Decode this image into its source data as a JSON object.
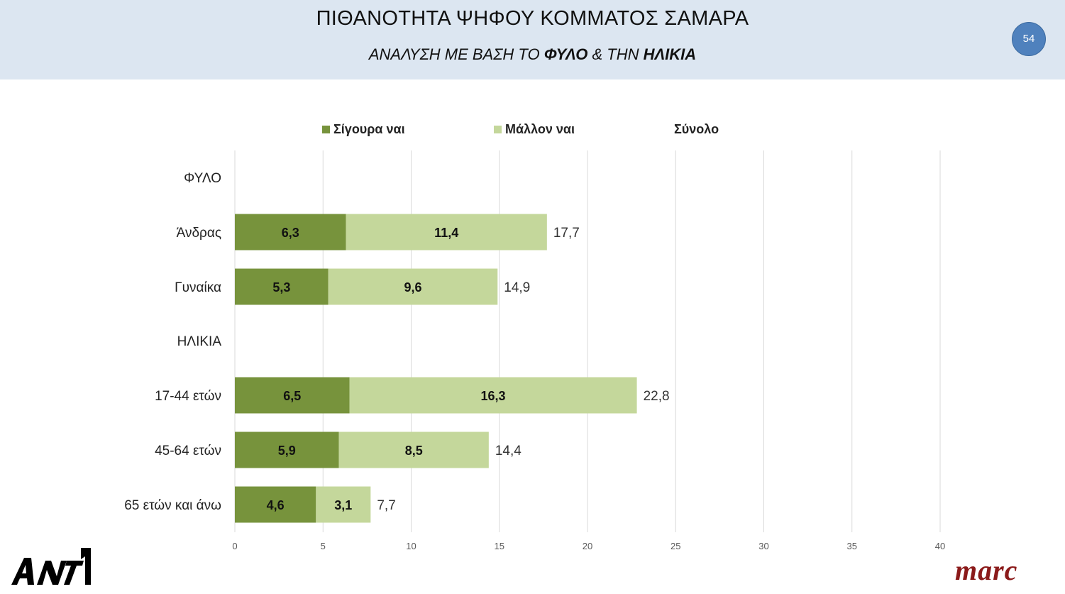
{
  "header": {
    "title": "ΠΙΘΑΝΟΤΗΤΑ ΨΗΦΟΥ ΚΟΜΜΑΤΟΣ ΣΑΜΑΡΑ",
    "subtitle_prefix": "ΑΝΑΛΥΣΗ ΜΕ ΒΑΣΗ ΤΟ ",
    "subtitle_bold1": "ΦΥΛΟ",
    "subtitle_mid": " & ΤΗΝ ",
    "subtitle_bold2": "ΗΛΙΚΙΑ",
    "page_number": "54"
  },
  "legend": {
    "sure_yes": "Σίγουρα ναι",
    "rather_yes": "Μάλλον ναι",
    "total": "Σύνολο"
  },
  "colors": {
    "sure_yes": "#77933c",
    "rather_yes": "#c4d79b",
    "header_bg": "#dce6f1",
    "badge": "#4f81bd",
    "gridline": "#d9d9d9"
  },
  "chart_data": {
    "type": "bar",
    "orientation": "horizontal",
    "stacked": true,
    "title": "ΠΙΘΑΝΟΤΗΤΑ ΨΗΦΟΥ ΚΟΜΜΑΤΟΣ ΣΑΜΑΡΑ",
    "categories": [
      "ΦΥΛΟ",
      "Άνδρας",
      "Γυναίκα",
      "ΗΛΙΚΙΑ",
      "17-44 ετών",
      "45-64 ετών",
      "65 ετών και άνω"
    ],
    "series": [
      {
        "name": "Σίγουρα ναι",
        "values": [
          null,
          6.3,
          5.3,
          null,
          6.5,
          5.9,
          4.6
        ],
        "labels": [
          "",
          "6,3",
          "5,3",
          "",
          "6,5",
          "5,9",
          "4,6"
        ]
      },
      {
        "name": "Μάλλον ναι",
        "values": [
          null,
          11.4,
          9.6,
          null,
          16.3,
          8.5,
          3.1
        ],
        "labels": [
          "",
          "11,4",
          "9,6",
          "",
          "16,3",
          "8,5",
          "3,1"
        ]
      }
    ],
    "totals": {
      "name": "Σύνολο",
      "values": [
        null,
        17.7,
        14.9,
        null,
        22.8,
        14.4,
        7.7
      ],
      "labels": [
        "",
        "17,7",
        "14,9",
        "",
        "22,8",
        "14,4",
        "7,7"
      ]
    },
    "xlim": [
      0,
      40
    ],
    "xticks": [
      0,
      5,
      10,
      15,
      20,
      25,
      30,
      35,
      40
    ],
    "grid": true,
    "legend_position": "top"
  },
  "logos": {
    "left": "ANT1",
    "right": "marc"
  }
}
